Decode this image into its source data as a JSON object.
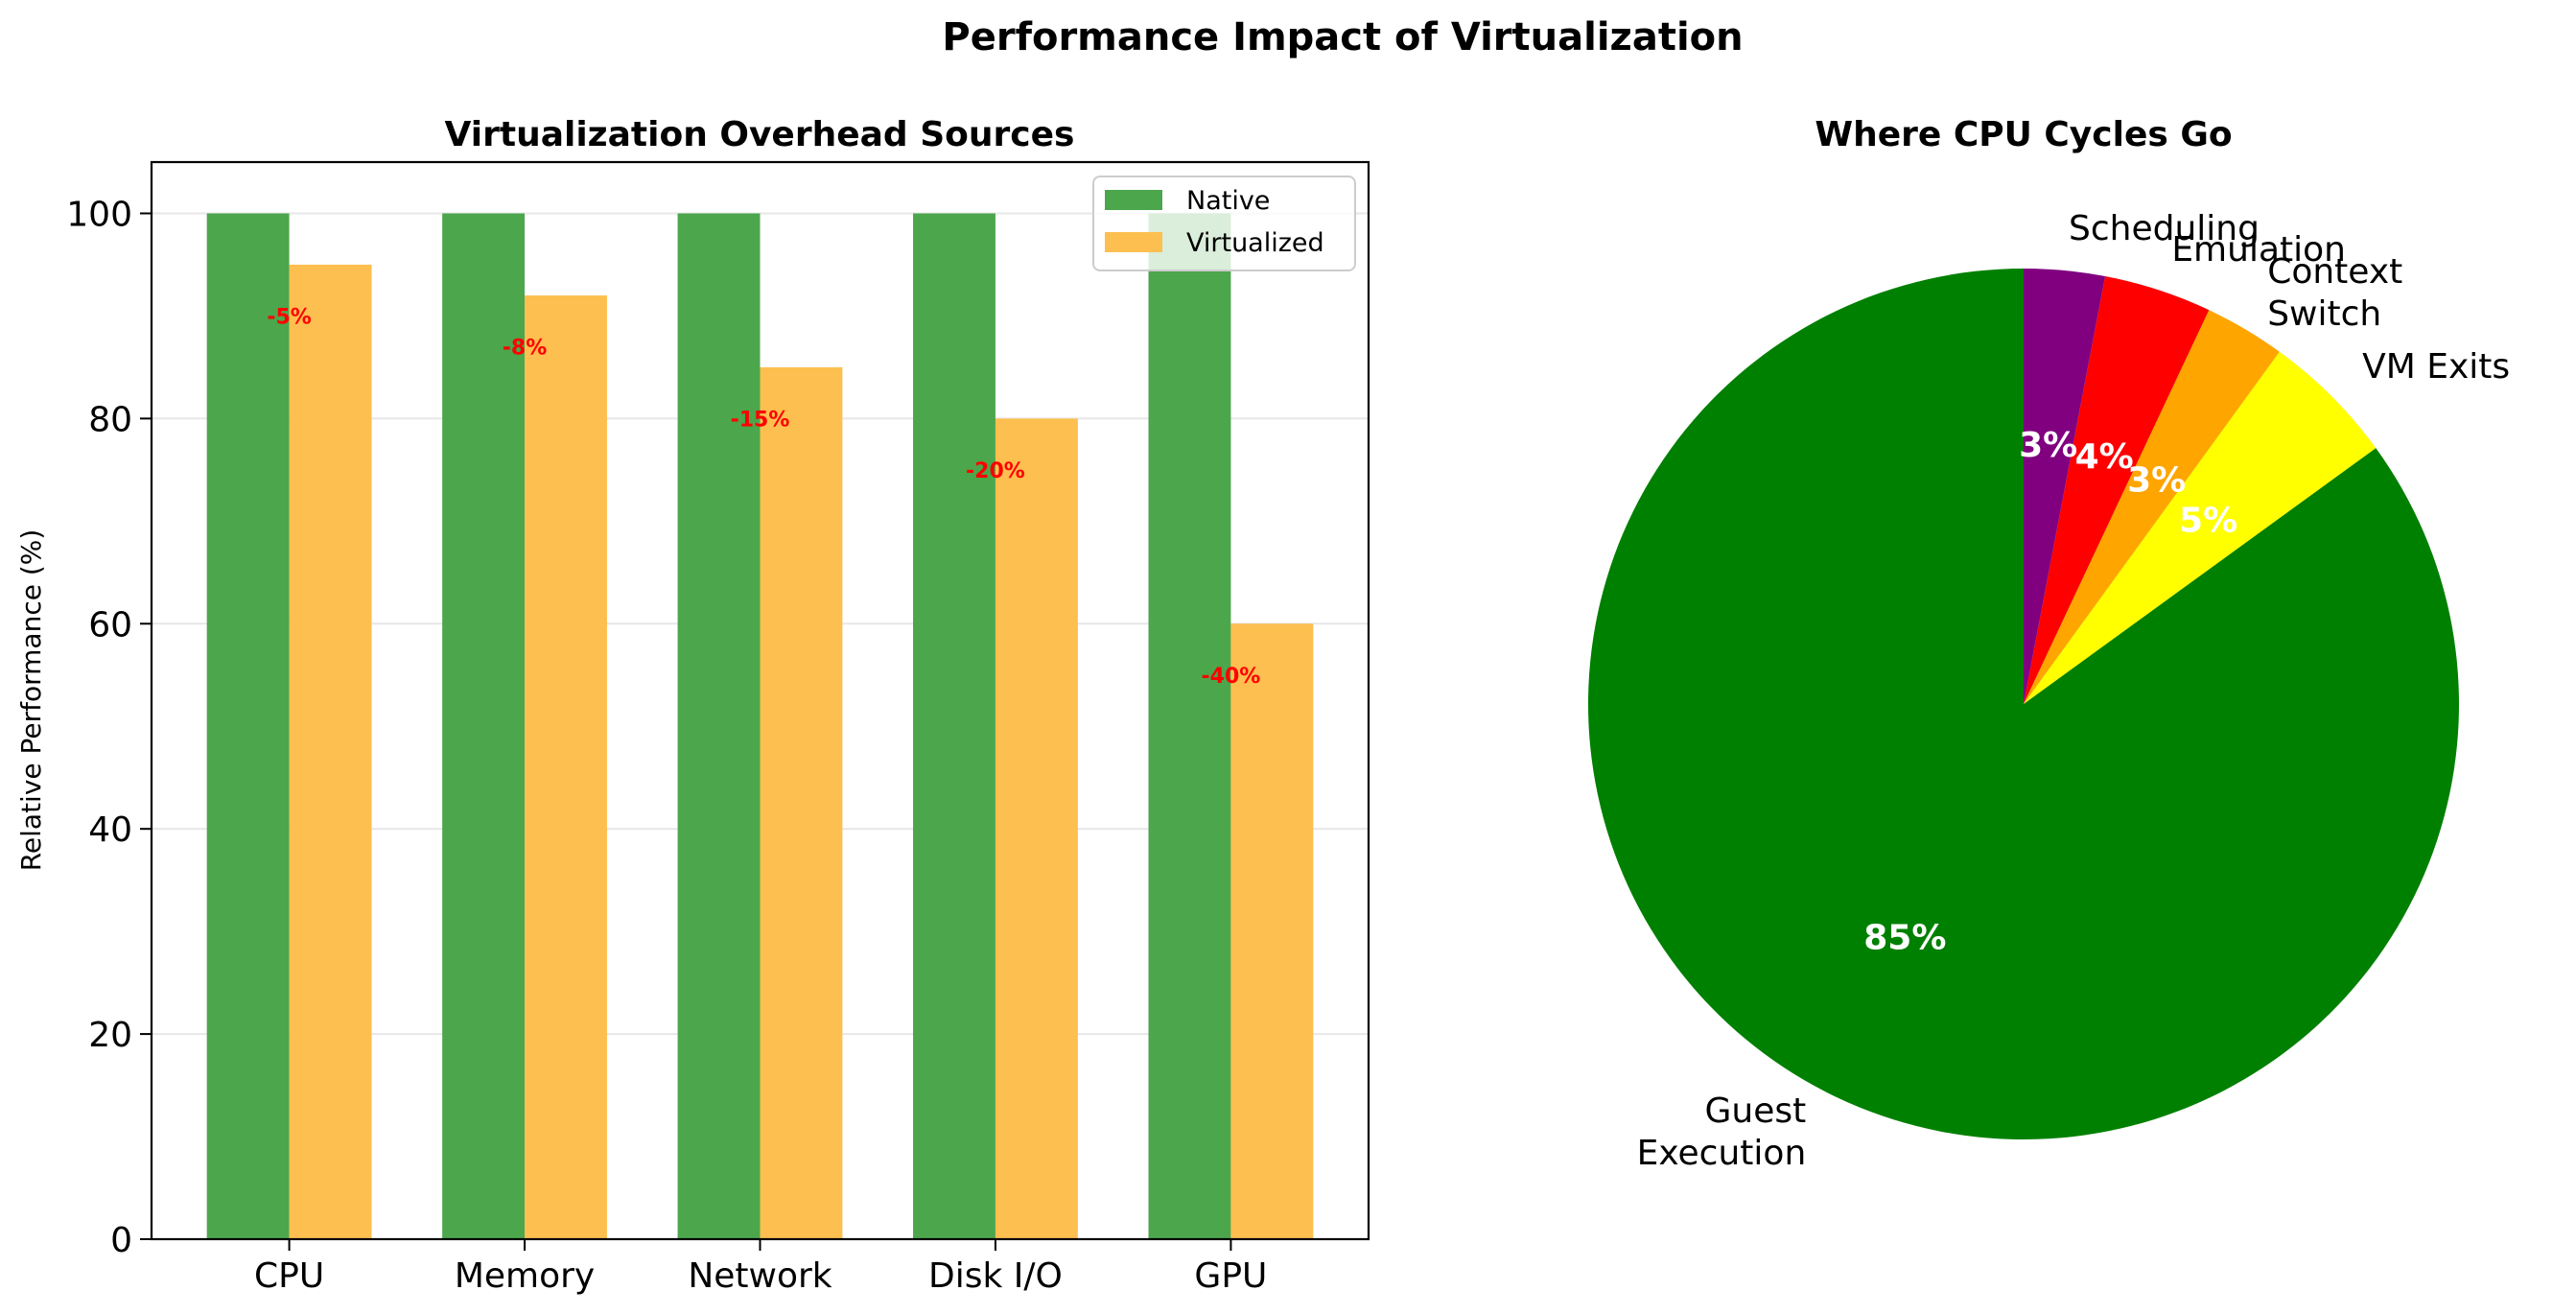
{
  "figure": {
    "suptitle": "Performance Impact of Virtualization"
  },
  "chart_data": [
    {
      "type": "bar",
      "title": "Virtualization Overhead Sources",
      "xlabel": "",
      "ylabel": "Relative Performance (%)",
      "categories": [
        "CPU",
        "Memory",
        "Network",
        "Disk I/O",
        "GPU"
      ],
      "series": [
        {
          "name": "Native",
          "color": "#4ca64c",
          "values": [
            100,
            100,
            100,
            100,
            100
          ]
        },
        {
          "name": "Virtualized",
          "color": "#fdbf4f",
          "values": [
            95,
            92,
            85,
            80,
            60
          ]
        }
      ],
      "annotations": [
        "-5%",
        "-8%",
        "-15%",
        "-20%",
        "-40%"
      ],
      "annotation_color": "#ff0000",
      "ylim": [
        0,
        105
      ],
      "yticks": [
        0,
        20,
        40,
        60,
        80,
        100
      ],
      "grid": true,
      "grid_axis": "y",
      "legend": {
        "placement": "top-right",
        "entries": [
          "Native",
          "Virtualized"
        ]
      }
    },
    {
      "type": "pie",
      "title": "Where CPU Cycles Go",
      "labels": [
        "Guest Execution",
        "VM Exits",
        "Context Switch",
        "Emulation",
        "Scheduling"
      ],
      "label_lines": [
        [
          "Guest",
          "Execution"
        ],
        [
          "VM Exits"
        ],
        [
          "Context",
          "Switch"
        ],
        [
          "Emulation"
        ],
        [
          "Scheduling"
        ]
      ],
      "values": [
        85,
        5,
        3,
        4,
        3
      ],
      "pct_labels": [
        "85%",
        "5%",
        "3%",
        "4%",
        "3%"
      ],
      "colors": [
        "#008000",
        "#ffff00",
        "#ffa500",
        "#ff0000",
        "#800080"
      ],
      "start_angle_deg": 90,
      "direction": "counterclockwise"
    }
  ]
}
